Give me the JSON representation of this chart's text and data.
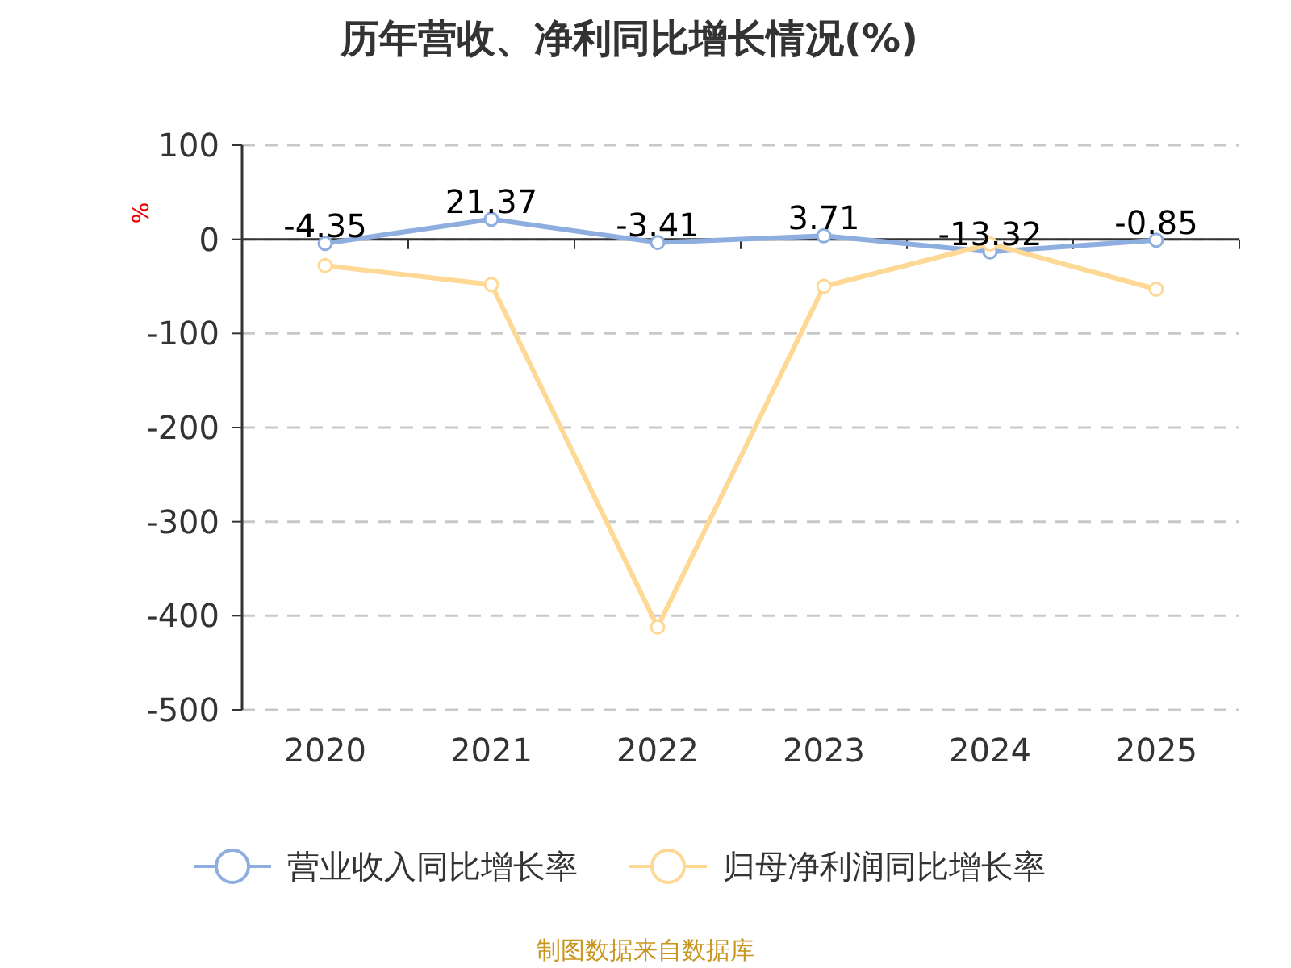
{
  "chart_data": {
    "type": "line",
    "title": "历年营收、净利同比增长情况(%)",
    "ylabel": "%",
    "categories": [
      "2020",
      "2021",
      "2022",
      "2023",
      "2024",
      "2025"
    ],
    "series": [
      {
        "name": "营业收入同比增长率",
        "color": "#8eaedf",
        "values": [
          -4.35,
          21.37,
          -3.41,
          3.71,
          -13.32,
          -0.85
        ],
        "value_labels": [
          "-4.35",
          "21.37",
          "-3.41",
          "3.71",
          "-13.32",
          "-0.85"
        ]
      },
      {
        "name": "归母净利润同比增长率",
        "color": "#fdd995",
        "values": [
          -28,
          -48,
          -412,
          -50,
          -5,
          -53
        ]
      }
    ],
    "ylim": [
      -500,
      100
    ],
    "yticks": [
      -500,
      -400,
      -300,
      -200,
      -100,
      0,
      100
    ],
    "grid": "y",
    "legend": "bottom",
    "marker": "circle",
    "annotations": [
      "制图数据来自数据库"
    ]
  }
}
